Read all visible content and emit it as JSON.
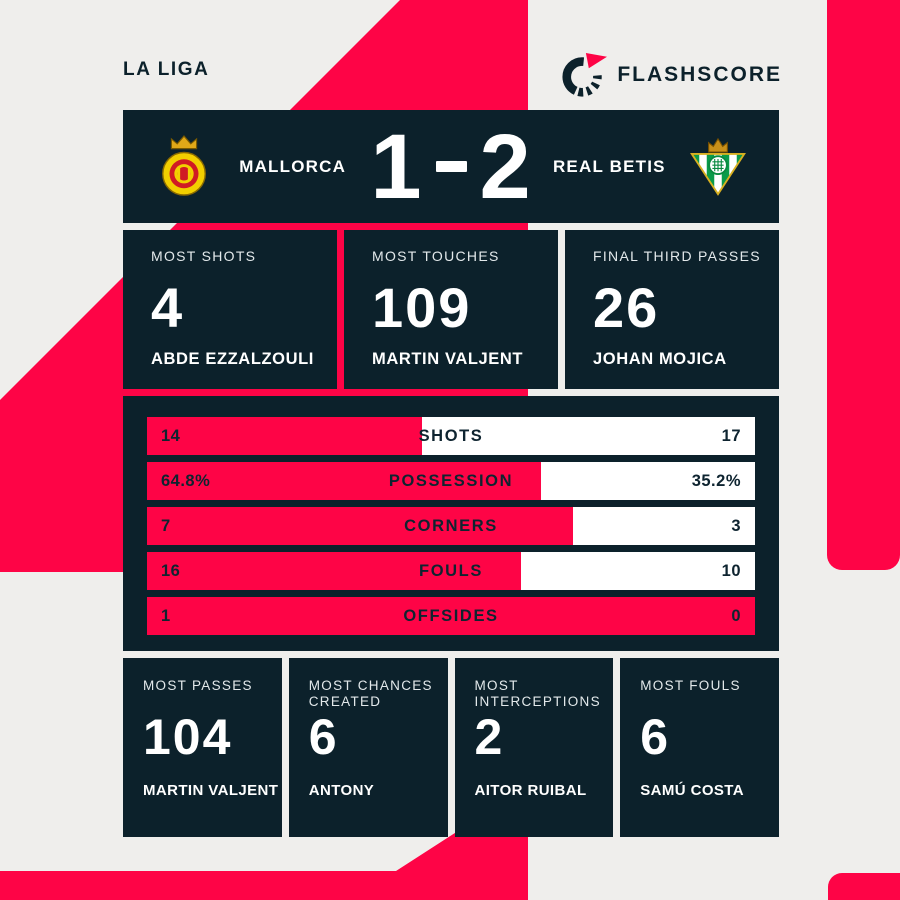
{
  "competition": "LA LIGA",
  "brand": {
    "name": "FLASHSCORE"
  },
  "header": {
    "home_team": "MALLORCA",
    "away_team": "REAL BETIS",
    "home_score": "1",
    "away_score": "2"
  },
  "top_stats": [
    {
      "label": "MOST SHOTS",
      "value": "4",
      "player": "ABDE EZZALZOULI"
    },
    {
      "label": "MOST TOUCHES",
      "value": "109",
      "player": "MARTIN VALJENT"
    },
    {
      "label": "FINAL THIRD PASSES",
      "value": "26",
      "player": "JOHAN MOJICA"
    }
  ],
  "bars": [
    {
      "label": "SHOTS",
      "home": "14",
      "away": "17"
    },
    {
      "label": "POSSESSION",
      "home": "64.8%",
      "away": "35.2%"
    },
    {
      "label": "CORNERS",
      "home": "7",
      "away": "3"
    },
    {
      "label": "FOULS",
      "home": "16",
      "away": "10"
    },
    {
      "label": "OFFSIDES",
      "home": "1",
      "away": "0"
    }
  ],
  "bottom_stats": [
    {
      "label": "MOST PASSES",
      "value": "104",
      "player": "MARTIN VALJENT"
    },
    {
      "label": "MOST CHANCES CREATED",
      "value": "6",
      "player": "ANTONY"
    },
    {
      "label": "MOST INTERCEPTIONS",
      "value": "2",
      "player": "AITOR RUIBAL"
    },
    {
      "label": "MOST FOULS",
      "value": "6",
      "player": "SAMÚ COSTA"
    }
  ],
  "chart_data": {
    "type": "bar",
    "title": "Mallorca 1-2 Real Betis — match statistics",
    "categories": [
      "SHOTS",
      "POSSESSION",
      "CORNERS",
      "FOULS",
      "OFFSIDES"
    ],
    "series": [
      {
        "name": "Mallorca",
        "values": [
          14,
          64.8,
          7,
          16,
          1
        ]
      },
      {
        "name": "Real Betis",
        "values": [
          17,
          35.2,
          3,
          10,
          0
        ]
      }
    ],
    "home_share_pct": [
      45.2,
      64.8,
      70,
      61.5,
      100
    ],
    "layout": "horizontal paired bars; home share filled pink from left, away portion white; value labels at both ends, category label centered"
  },
  "colors": {
    "pink": "#fe0446",
    "navy": "#0c212b",
    "background": "#efeeec",
    "white": "#ffffff"
  }
}
